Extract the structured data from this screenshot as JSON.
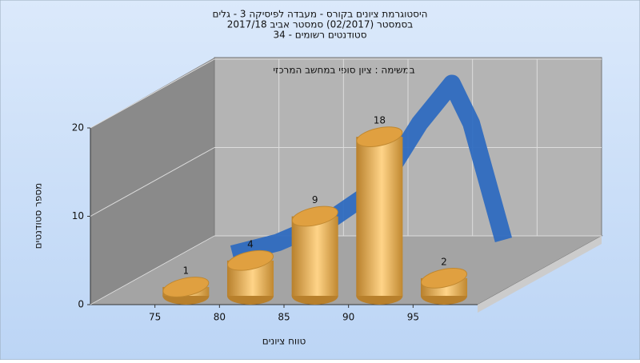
{
  "chart_data": {
    "type": "histogram",
    "title_lines": [
      "היסטוגרמת ציונים בקורס - מעבדה לפיסיקה 3 - גלים",
      "בסמסטר  (02/2017)  סמסטר אביב 2017/18",
      "סטודנטים רשומים - 34"
    ],
    "annotation": "במשימה : ציון סופי במחשב המרכזי",
    "x_label": "טווח ציונים",
    "y_label": "מספר סטודנטים",
    "bins": [
      70,
      75,
      80,
      85,
      90,
      95
    ],
    "values": [
      1,
      4,
      9,
      18,
      2
    ],
    "color": "#e0a040",
    "curve": {
      "x": [
        74.5,
        78,
        82,
        86,
        89,
        91.5,
        93,
        95.5
      ],
      "values": [
        1.2,
        2.5,
        5,
        9,
        16,
        20.5,
        16,
        2.8
      ],
      "color": "#2f6bc0"
    },
    "xlim": [
      70,
      100
    ],
    "xticks": [
      75,
      80,
      85,
      90,
      95
    ],
    "ylim": [
      0,
      20
    ],
    "yticks": [
      0,
      10,
      20
    ],
    "grid": true
  }
}
